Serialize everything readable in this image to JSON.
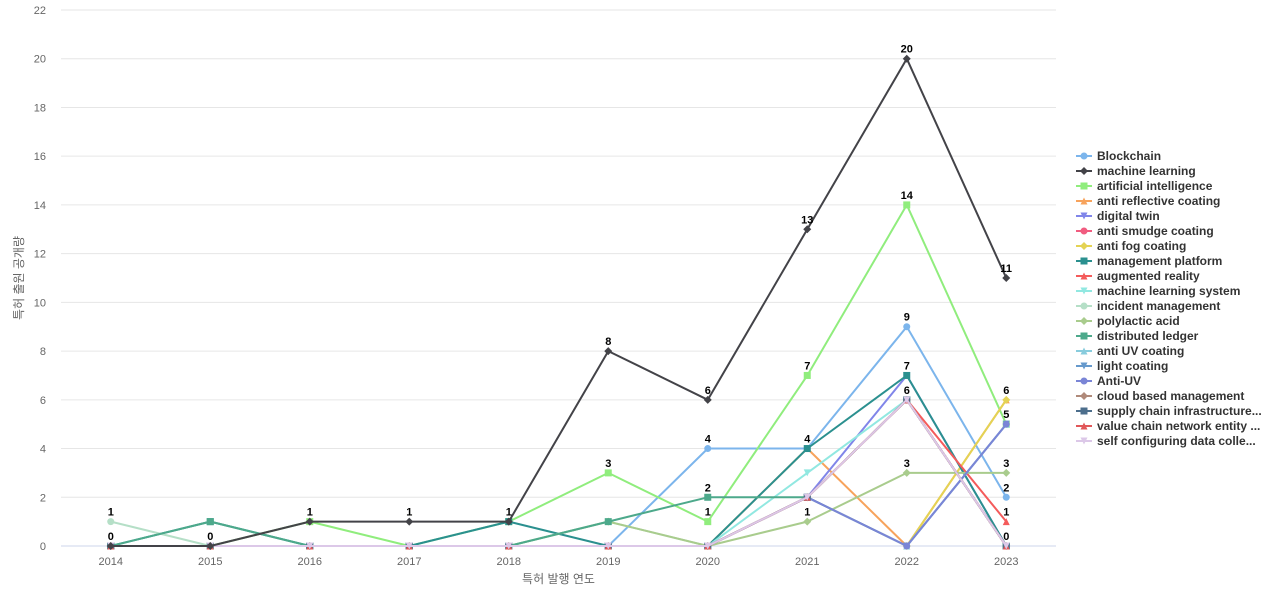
{
  "chart_data": {
    "type": "line",
    "title": "",
    "xlabel": "특허 발행 연도",
    "ylabel": "특허 출원 공개량",
    "x": [
      "2014",
      "2015",
      "2016",
      "2017",
      "2018",
      "2019",
      "2020",
      "2021",
      "2022",
      "2023"
    ],
    "ylim": [
      0,
      22
    ],
    "yticks": [
      0,
      2,
      4,
      6,
      8,
      10,
      12,
      14,
      16,
      18,
      20,
      22
    ],
    "grid": true,
    "legend_position": "right",
    "series": [
      {
        "name": "Blockchain",
        "color": "#7cb5ec",
        "marker": "circle",
        "values": [
          0,
          0,
          0,
          0,
          0,
          0,
          4,
          4,
          9,
          2
        ],
        "labels": [
          false,
          false,
          false,
          false,
          false,
          false,
          true,
          true,
          true,
          true
        ]
      },
      {
        "name": "machine learning",
        "color": "#434348",
        "marker": "diamond",
        "values": [
          0,
          0,
          1,
          1,
          1,
          8,
          6,
          13,
          20,
          11
        ],
        "labels": [
          true,
          true,
          true,
          true,
          true,
          true,
          true,
          true,
          true,
          true
        ]
      },
      {
        "name": "artificial intelligence",
        "color": "#90ed7d",
        "marker": "square",
        "values": [
          0,
          0,
          1,
          0,
          1,
          3,
          1,
          7,
          14,
          5
        ],
        "labels": [
          false,
          false,
          false,
          false,
          false,
          true,
          true,
          true,
          true,
          false
        ]
      },
      {
        "name": "anti reflective coating",
        "color": "#f7a35c",
        "marker": "triangle",
        "values": [
          0,
          0,
          0,
          0,
          0,
          0,
          0,
          4,
          0,
          6
        ],
        "labels": [
          false,
          false,
          false,
          false,
          false,
          false,
          false,
          false,
          false,
          false
        ]
      },
      {
        "name": "digital twin",
        "color": "#8085e9",
        "marker": "triangle-down",
        "values": [
          0,
          0,
          0,
          0,
          0,
          0,
          0,
          2,
          7,
          0
        ],
        "labels": [
          false,
          false,
          false,
          false,
          false,
          false,
          false,
          false,
          false,
          false
        ]
      },
      {
        "name": "anti smudge coating",
        "color": "#f15c80",
        "marker": "circle",
        "values": [
          0,
          0,
          0,
          0,
          0,
          0,
          0,
          2,
          6,
          0
        ],
        "labels": [
          false,
          false,
          false,
          false,
          false,
          false,
          false,
          false,
          false,
          false
        ]
      },
      {
        "name": "anti fog coating",
        "color": "#e4d354",
        "marker": "diamond",
        "values": [
          0,
          0,
          0,
          0,
          0,
          0,
          0,
          2,
          0,
          6
        ],
        "labels": [
          false,
          false,
          false,
          false,
          false,
          false,
          false,
          false,
          false,
          true
        ]
      },
      {
        "name": "management platform",
        "color": "#2b908f",
        "marker": "square",
        "values": [
          0,
          1,
          0,
          0,
          1,
          0,
          0,
          4,
          7,
          0
        ],
        "labels": [
          false,
          false,
          false,
          false,
          false,
          false,
          false,
          false,
          true,
          false
        ]
      },
      {
        "name": "augmented reality",
        "color": "#f45b5b",
        "marker": "triangle",
        "values": [
          0,
          0,
          0,
          0,
          0,
          0,
          0,
          2,
          6,
          1
        ],
        "labels": [
          false,
          false,
          false,
          false,
          false,
          false,
          false,
          false,
          false,
          true
        ]
      },
      {
        "name": "machine learning system",
        "color": "#91e8e1",
        "marker": "triangle-down",
        "values": [
          0,
          0,
          0,
          0,
          0,
          0,
          0,
          3,
          6,
          0
        ],
        "labels": [
          false,
          false,
          false,
          false,
          false,
          false,
          false,
          false,
          false,
          false
        ]
      },
      {
        "name": "incident management",
        "color": "#b5dfc7",
        "marker": "circle",
        "values": [
          1,
          0,
          0,
          0,
          0,
          1,
          0,
          2,
          6,
          0
        ],
        "labels": [
          true,
          false,
          false,
          false,
          false,
          false,
          false,
          false,
          false,
          false
        ]
      },
      {
        "name": "polylactic acid",
        "color": "#a9cc8d",
        "marker": "diamond",
        "values": [
          0,
          0,
          0,
          0,
          0,
          1,
          0,
          1,
          3,
          3
        ],
        "labels": [
          false,
          false,
          false,
          false,
          false,
          false,
          false,
          true,
          true,
          true
        ]
      },
      {
        "name": "distributed ledger",
        "color": "#4da98b",
        "marker": "square",
        "values": [
          0,
          1,
          0,
          0,
          0,
          1,
          2,
          2,
          6,
          0
        ],
        "labels": [
          false,
          false,
          false,
          false,
          false,
          false,
          true,
          false,
          false,
          false
        ]
      },
      {
        "name": "anti UV coating",
        "color": "#88ccdd",
        "marker": "triangle",
        "values": [
          0,
          0,
          0,
          0,
          0,
          0,
          0,
          2,
          0,
          5
        ],
        "labels": [
          false,
          false,
          false,
          false,
          false,
          false,
          false,
          false,
          false,
          false
        ]
      },
      {
        "name": "light coating",
        "color": "#6699cc",
        "marker": "triangle-down",
        "values": [
          0,
          0,
          0,
          0,
          0,
          0,
          0,
          2,
          0,
          5
        ],
        "labels": [
          false,
          false,
          false,
          false,
          false,
          false,
          false,
          false,
          false,
          true
        ]
      },
      {
        "name": "Anti-UV",
        "color": "#7a85d6",
        "marker": "circle",
        "values": [
          0,
          0,
          0,
          0,
          0,
          0,
          0,
          2,
          0,
          5
        ],
        "labels": [
          false,
          false,
          false,
          false,
          false,
          false,
          false,
          false,
          false,
          false
        ]
      },
      {
        "name": "cloud based management",
        "color": "#b08a7a",
        "marker": "diamond",
        "values": [
          0,
          0,
          0,
          0,
          0,
          0,
          0,
          2,
          6,
          0
        ],
        "labels": [
          false,
          false,
          false,
          false,
          false,
          false,
          false,
          false,
          true,
          true
        ]
      },
      {
        "name": "supply chain infrastructure...",
        "color": "#4c6e8c",
        "marker": "square",
        "values": [
          0,
          0,
          0,
          0,
          0,
          0,
          0,
          2,
          6,
          0
        ],
        "labels": [
          false,
          false,
          false,
          false,
          false,
          false,
          false,
          false,
          false,
          false
        ]
      },
      {
        "name": "value chain network entity ...",
        "color": "#e15759",
        "marker": "triangle",
        "values": [
          0,
          0,
          0,
          0,
          0,
          0,
          0,
          2,
          6,
          0
        ],
        "labels": [
          false,
          false,
          false,
          false,
          false,
          false,
          false,
          false,
          false,
          false
        ]
      },
      {
        "name": "self configuring data colle...",
        "color": "#dcc8e8",
        "marker": "triangle-down",
        "values": [
          0,
          0,
          0,
          0,
          0,
          0,
          0,
          2,
          6,
          0
        ],
        "labels": [
          false,
          false,
          false,
          false,
          false,
          false,
          false,
          false,
          false,
          false
        ]
      }
    ]
  }
}
